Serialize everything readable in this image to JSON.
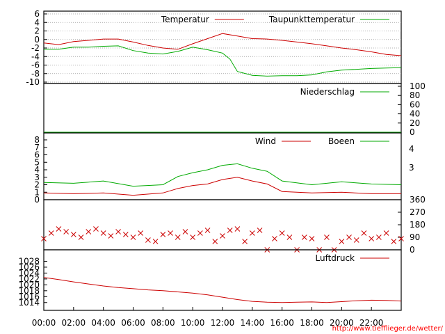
{
  "chart_data": [
    {
      "type": "line",
      "panel": "temperature",
      "ylim": [
        -10,
        6
      ],
      "yticks": [
        "6",
        "4",
        "2",
        "0",
        "-2",
        "-4",
        "-6",
        "-8",
        "-10"
      ],
      "grid": true,
      "legend_position": "top-right",
      "series": [
        {
          "name": "Temperatur",
          "color": "#cc0000",
          "x": [
            0,
            1,
            2,
            3,
            4,
            5,
            6,
            7,
            8,
            9,
            10,
            11,
            12,
            13,
            14,
            15,
            16,
            17,
            18,
            19,
            20,
            21,
            22,
            23,
            24
          ],
          "values": [
            -0.8,
            -1.2,
            -0.5,
            -0.2,
            0.1,
            0.1,
            -0.6,
            -1.4,
            -2.0,
            -2.3,
            -1.0,
            0.2,
            1.4,
            0.8,
            0.2,
            0.1,
            -0.2,
            -0.6,
            -1.0,
            -1.5,
            -2.0,
            -2.4,
            -2.9,
            -3.5,
            -3.8
          ]
        },
        {
          "name": "Taupunkttemperatur",
          "color": "#00aa00",
          "x": [
            0,
            1,
            2,
            3,
            4,
            5,
            6,
            7,
            8,
            9,
            10,
            11,
            12,
            12.5,
            13,
            14,
            15,
            16,
            17,
            18,
            19,
            20,
            21,
            22,
            23,
            24
          ],
          "values": [
            -2.3,
            -2.3,
            -1.8,
            -1.8,
            -1.6,
            -1.5,
            -2.6,
            -3.2,
            -3.4,
            -2.8,
            -1.8,
            -2.4,
            -3.2,
            -4.6,
            -7.5,
            -8.4,
            -8.6,
            -8.5,
            -8.5,
            -8.3,
            -7.6,
            -7.2,
            -7.0,
            -6.8,
            -6.7,
            -6.6
          ]
        }
      ]
    },
    {
      "type": "line",
      "panel": "precipitation",
      "ylim": [
        0,
        100
      ],
      "yticks": [
        "100",
        "80",
        "60",
        "40",
        "20",
        "0"
      ],
      "series": [
        {
          "name": "Niederschlag",
          "color": "#00aa00",
          "x": [
            0,
            24
          ],
          "values": [
            0,
            0
          ]
        }
      ]
    },
    {
      "type": "line",
      "panel": "wind",
      "ylim": [
        0,
        8
      ],
      "yticks": [
        "8",
        "7",
        "6",
        "5",
        "4",
        "3",
        "2",
        "1",
        "0"
      ],
      "right_ticks": [
        "4",
        "3"
      ],
      "series": [
        {
          "name": "Wind",
          "color": "#cc0000",
          "x": [
            0,
            2,
            4,
            6,
            8,
            9,
            10,
            11,
            12,
            13,
            14,
            15,
            16,
            18,
            20,
            22,
            24
          ],
          "values": [
            0.9,
            0.8,
            0.9,
            0.6,
            0.9,
            1.5,
            1.9,
            2.1,
            2.7,
            3.0,
            2.5,
            2.1,
            1.1,
            0.9,
            1.0,
            0.8,
            0.8
          ]
        },
        {
          "name": "Boeen",
          "color": "#00aa00",
          "x": [
            0,
            2,
            4,
            6,
            8,
            9,
            10,
            11,
            12,
            13,
            14,
            15,
            16,
            18,
            20,
            22,
            24
          ],
          "values": [
            2.3,
            2.2,
            2.5,
            1.8,
            2.0,
            3.1,
            3.6,
            4.0,
            4.6,
            4.8,
            4.2,
            3.8,
            2.5,
            2.0,
            2.4,
            2.1,
            2.0
          ]
        }
      ]
    },
    {
      "type": "scatter",
      "panel": "wind_direction",
      "ylim": [
        0,
        360
      ],
      "yticks": [
        "360",
        "270",
        "180",
        "90",
        "0"
      ],
      "marker": "x",
      "color": "#cc0000",
      "series": [
        {
          "x": [
            0,
            0.5,
            1,
            1.5,
            2,
            2.5,
            3,
            3.5,
            4,
            4.5,
            5,
            5.5,
            6,
            6.5,
            7,
            7.5,
            8,
            8.5,
            9,
            9.5,
            10,
            10.5,
            11,
            11.5,
            12,
            12.5,
            13,
            13.5,
            14,
            14.5,
            15,
            15.5,
            16,
            16.5,
            17,
            17.5,
            18,
            18.5,
            19,
            19.5,
            20,
            20.5,
            21,
            21.5,
            22,
            22.5,
            23,
            23.5,
            24
          ],
          "values": [
            80,
            120,
            150,
            130,
            110,
            90,
            130,
            150,
            120,
            100,
            130,
            110,
            90,
            120,
            70,
            60,
            110,
            120,
            90,
            130,
            90,
            120,
            140,
            60,
            100,
            140,
            150,
            60,
            120,
            140,
            0,
            80,
            120,
            90,
            0,
            90,
            80,
            0,
            90,
            0,
            60,
            90,
            70,
            120,
            80,
            90,
            120,
            60,
            80
          ]
        }
      ]
    },
    {
      "type": "line",
      "panel": "pressure",
      "ylim": [
        1013,
        1030
      ],
      "yticks": [
        "1028",
        "1026",
        "1024",
        "1022",
        "1020",
        "1018",
        "1016",
        "1014"
      ],
      "series": [
        {
          "name": "Luftdruck",
          "color": "#cc0000",
          "x": [
            0,
            1,
            2,
            3,
            4,
            5,
            6,
            7,
            8,
            9,
            10,
            11,
            12,
            13,
            14,
            15,
            16,
            17,
            18,
            19,
            20,
            21,
            22,
            23,
            24
          ],
          "values": [
            1022.5,
            1021.8,
            1021.0,
            1020.3,
            1019.6,
            1019.1,
            1018.7,
            1018.3,
            1018.0,
            1017.6,
            1017.2,
            1016.6,
            1015.8,
            1015.0,
            1014.4,
            1014.1,
            1014.0,
            1014.1,
            1014.2,
            1014.0,
            1014.3,
            1014.6,
            1014.8,
            1014.7,
            1014.5
          ]
        }
      ]
    }
  ],
  "x_axis": {
    "ticks": [
      "00:00",
      "02:00",
      "04:00",
      "06:00",
      "08:00",
      "10:00",
      "12:00",
      "14:00",
      "16:00",
      "18:00",
      "20:00",
      "22:00"
    ],
    "xlim": [
      0,
      24
    ]
  },
  "footer": {
    "url": "http://www.tiefflieger.de/wetter/"
  }
}
